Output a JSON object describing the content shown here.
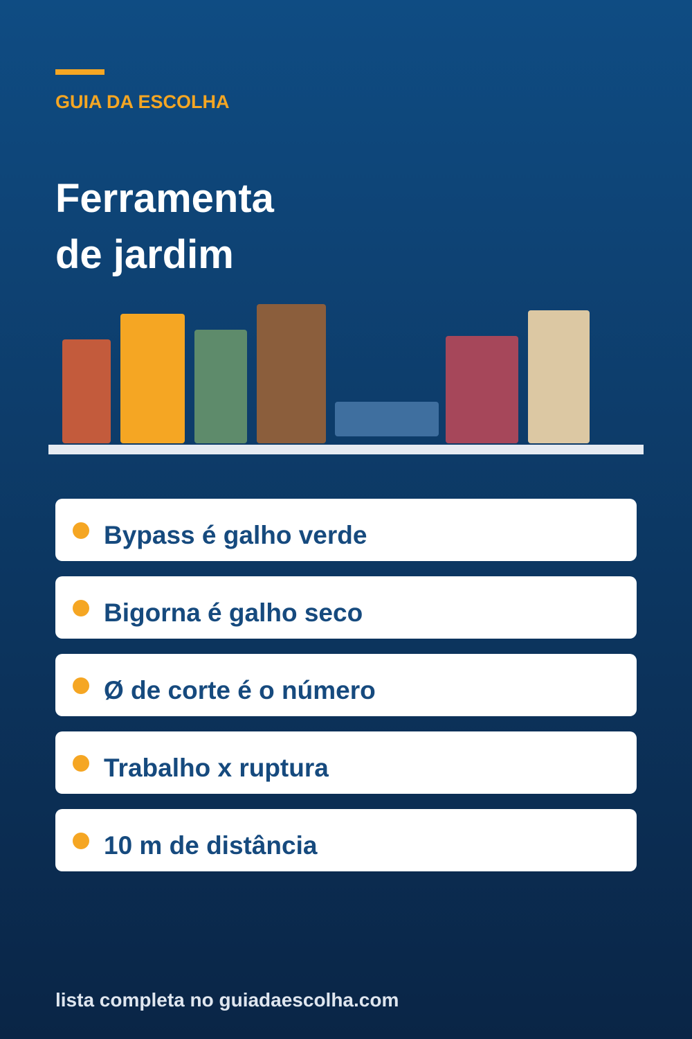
{
  "header": {
    "kicker": "GUIA DA ESCOLHA",
    "title_lines": [
      "Ferramenta",
      "de jardim"
    ]
  },
  "items": [
    "Bypass é galho verde",
    "Bigorna é galho seco",
    "Ø de corte é o número",
    "Trabalho x ruptura",
    "10 m de distância"
  ],
  "footer": "lista completa no guiadaescolha.com"
}
